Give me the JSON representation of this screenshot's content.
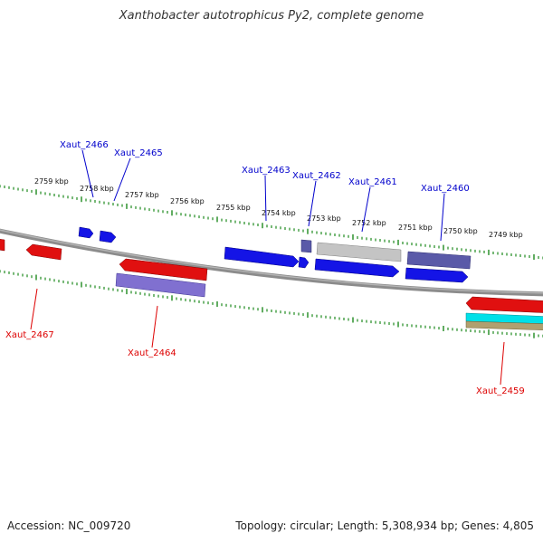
{
  "title": "Xanthobacter autotrophicus Py2, complete genome",
  "footer": {
    "accession": "Accession: NC_009720",
    "summary": "Topology: circular; Length: 5,308,934 bp; Genes: 4,805"
  },
  "colors": {
    "backbone": "#8c8c8c",
    "ticks": "#1e8a1e",
    "forward_label": "#0000cc",
    "reverse_label": "#dd0000",
    "blue": "#1414e6",
    "red": "#e01010",
    "purple": "#5a5aa8",
    "lavender": "#8070d0",
    "grey": "#c4c4c4",
    "cyan": "#00e0e8",
    "tan": "#b0a070"
  },
  "scale_labels": [
    {
      "text": "2759 kbp"
    },
    {
      "text": "2758 kbp"
    },
    {
      "text": "2757 kbp"
    },
    {
      "text": "2756 kbp"
    },
    {
      "text": "2755 kbp"
    },
    {
      "text": "2754 kbp"
    },
    {
      "text": "2753 kbp"
    },
    {
      "text": "2752 kbp"
    },
    {
      "text": "2751 kbp"
    },
    {
      "text": "2750 kbp"
    },
    {
      "text": "2749 kbp"
    }
  ],
  "gene_labels": [
    {
      "name": "Xaut_2466",
      "strand": "forward"
    },
    {
      "name": "Xaut_2465",
      "strand": "forward"
    },
    {
      "name": "Xaut_2463",
      "strand": "forward"
    },
    {
      "name": "Xaut_2462",
      "strand": "forward"
    },
    {
      "name": "Xaut_2461",
      "strand": "forward"
    },
    {
      "name": "Xaut_2460",
      "strand": "forward"
    },
    {
      "name": "Xaut_2467",
      "strand": "reverse"
    },
    {
      "name": "Xaut_2464",
      "strand": "reverse"
    },
    {
      "name": "Xaut_2459",
      "strand": "reverse"
    }
  ]
}
